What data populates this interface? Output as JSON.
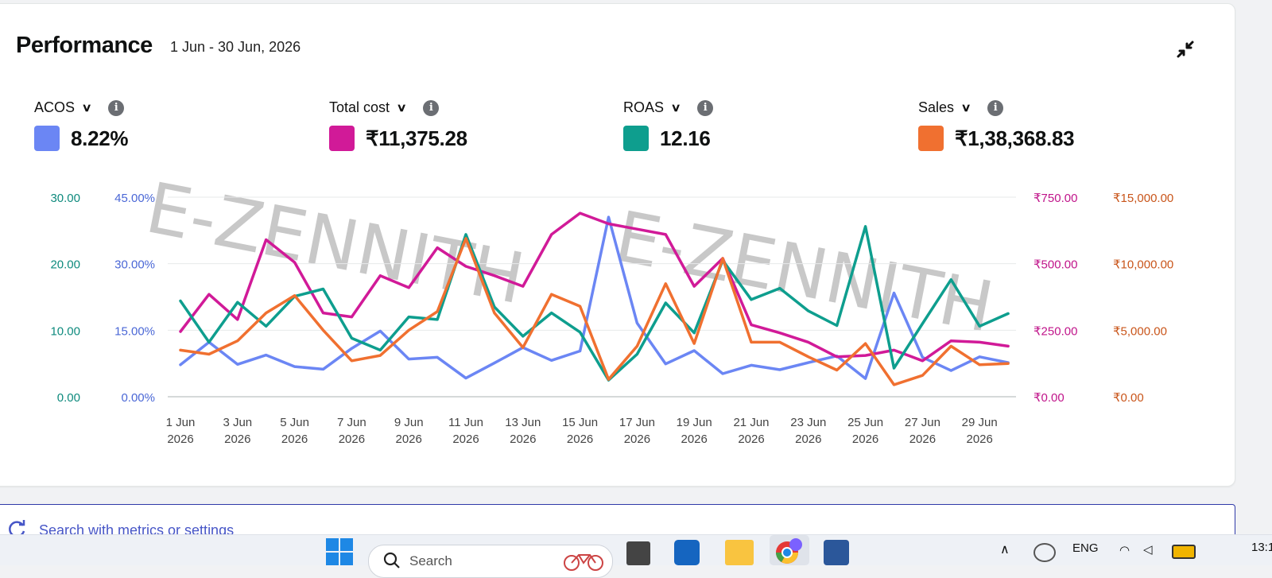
{
  "header": {
    "title": "Performance",
    "date_range": "1 Jun - 30 Jun, 2026"
  },
  "icons": {
    "collapse": "collapse-arrows-icon",
    "info": "info-icon",
    "chevron": "chevron-down-icon"
  },
  "metrics": [
    {
      "label": "ACOS",
      "value": "8.22%",
      "color": "#6b86f4"
    },
    {
      "label": "Total cost",
      "value": "₹11,375.28",
      "color": "#d11a98"
    },
    {
      "label": "ROAS",
      "value": "12.16",
      "color": "#0e9e8e"
    },
    {
      "label": "Sales",
      "value": "₹1,38,368.83",
      "color": "#f07030"
    }
  ],
  "watermark": "E-ZENNITH",
  "chart_data": {
    "type": "line",
    "x": [
      "1 Jun 2026",
      "2 Jun 2026",
      "3 Jun 2026",
      "4 Jun 2026",
      "5 Jun 2026",
      "6 Jun 2026",
      "7 Jun 2026",
      "8 Jun 2026",
      "9 Jun 2026",
      "10 Jun 2026",
      "11 Jun 2026",
      "12 Jun 2026",
      "13 Jun 2026",
      "14 Jun 2026",
      "15 Jun 2026",
      "16 Jun 2026",
      "17 Jun 2026",
      "18 Jun 2026",
      "19 Jun 2026",
      "20 Jun 2026",
      "21 Jun 2026",
      "22 Jun 2026",
      "23 Jun 2026",
      "24 Jun 2026",
      "25 Jun 2026",
      "26 Jun 2026",
      "27 Jun 2026",
      "28 Jun 2026",
      "29 Jun 2026",
      "30 Jun 2026"
    ],
    "tick_labels": [
      {
        "d": "1 Jun",
        "y": "2026"
      },
      {
        "d": "3 Jun",
        "y": "2026"
      },
      {
        "d": "5 Jun",
        "y": "2026"
      },
      {
        "d": "7 Jun",
        "y": "2026"
      },
      {
        "d": "9 Jun",
        "y": "2026"
      },
      {
        "d": "11 Jun",
        "y": "2026"
      },
      {
        "d": "13 Jun",
        "y": "2026"
      },
      {
        "d": "15 Jun",
        "y": "2026"
      },
      {
        "d": "17 Jun",
        "y": "2026"
      },
      {
        "d": "19 Jun",
        "y": "2026"
      },
      {
        "d": "21 Jun",
        "y": "2026"
      },
      {
        "d": "23 Jun",
        "y": "2026"
      },
      {
        "d": "25 Jun",
        "y": "2026"
      },
      {
        "d": "27 Jun",
        "y": "2026"
      },
      {
        "d": "29 Jun",
        "y": "2026"
      }
    ],
    "axes": {
      "roas": {
        "ticks": [
          "0.00",
          "10.00",
          "20.00",
          "30.00"
        ],
        "range": [
          0,
          30
        ],
        "color": "#0e8a7d"
      },
      "acos": {
        "ticks": [
          "0.00%",
          "15.00%",
          "30.00%",
          "45.00%"
        ],
        "range": [
          0,
          45
        ],
        "color": "#4a67d6"
      },
      "cost": {
        "ticks": [
          "₹0.00",
          "₹250.00",
          "₹500.00",
          "₹750.00"
        ],
        "range": [
          0,
          750
        ],
        "color": "#c0148a"
      },
      "sales": {
        "ticks": [
          "₹0.00",
          "₹5,000.00",
          "₹10,000.00",
          "₹15,000.00"
        ],
        "range": [
          0,
          15000
        ],
        "color": "#c9551a"
      }
    },
    "series": [
      {
        "name": "ACOS",
        "axis": "acos",
        "color": "#6b86f4",
        "values": [
          7.2,
          12.3,
          7.3,
          9.4,
          6.8,
          6.2,
          10.9,
          14.8,
          8.5,
          8.9,
          4.2,
          7.6,
          11.1,
          8.2,
          10.3,
          40.5,
          16.6,
          7.4,
          10.4,
          5.2,
          7.1,
          6.1,
          7.7,
          9.2,
          4.1,
          23.4,
          8.9,
          5.9,
          9.0,
          7.7
        ]
      },
      {
        "name": "Total cost",
        "axis": "cost",
        "color": "#d11a98",
        "values": [
          245,
          385,
          290,
          590,
          505,
          315,
          300,
          455,
          410,
          560,
          490,
          455,
          415,
          610,
          690,
          650,
          630,
          610,
          415,
          520,
          270,
          240,
          205,
          150,
          155,
          175,
          135,
          210,
          205,
          190
        ]
      },
      {
        "name": "ROAS",
        "axis": "roas",
        "color": "#0e9e8e",
        "values": [
          14.4,
          8.2,
          14.2,
          10.6,
          15.1,
          16.2,
          8.8,
          7.0,
          12.0,
          11.6,
          24.4,
          13.5,
          9.1,
          12.6,
          9.7,
          2.5,
          6.4,
          14.1,
          9.6,
          20.5,
          14.6,
          16.3,
          12.9,
          10.7,
          25.6,
          4.3,
          11.0,
          17.6,
          10.6,
          12.5
        ]
      },
      {
        "name": "Sales",
        "axis": "sales",
        "color": "#f07030",
        "values": [
          3500,
          3200,
          4200,
          6300,
          7600,
          5000,
          2700,
          3100,
          5000,
          6400,
          11900,
          6300,
          3700,
          7700,
          6800,
          1300,
          3800,
          8500,
          4000,
          10400,
          4100,
          4100,
          3000,
          2000,
          4000,
          900,
          1600,
          3800,
          2400,
          2500
        ]
      }
    ]
  },
  "search": {
    "placeholder": "Search with metrics or settings"
  },
  "taskbar": {
    "search_label": "Search",
    "lang": "ENG",
    "time": "13:1"
  }
}
